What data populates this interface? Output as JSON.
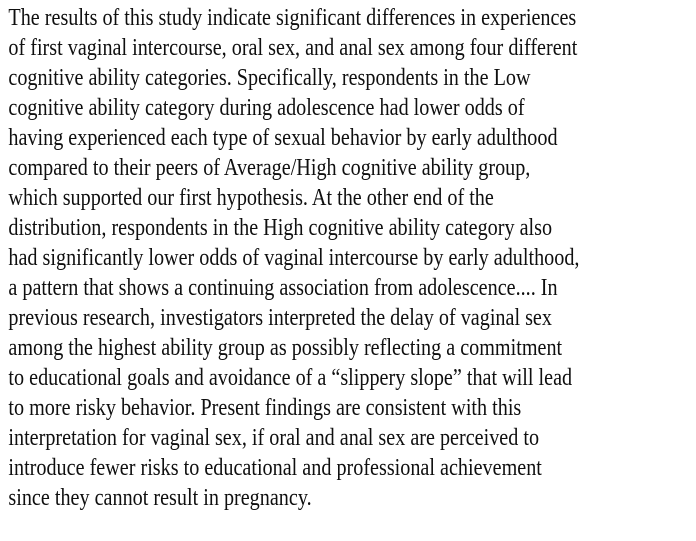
{
  "colors": {
    "background": "#ffffff",
    "text": "#0f0f0f"
  },
  "document": {
    "lines": [
      "The results of this study indicate significant differences in experiences",
      "of first vaginal intercourse, oral sex, and anal sex among four different",
      "cognitive ability categories. Specifically, respondents in the Low",
      "cognitive ability category during adolescence had lower odds of",
      "having experienced each type of sexual behavior by early adulthood",
      "compared to their peers of Average/High cognitive ability group,",
      "which supported our first hypothesis. At the other end of the",
      "distribution, respondents in the High cognitive ability category also",
      "had significantly lower odds of vaginal intercourse by early adulthood,",
      "a pattern that shows a continuing association from adolescence.... In",
      "previous research, investigators interpreted the delay of vaginal sex",
      "among the highest ability group as possibly reflecting a commitment",
      "to educational goals and avoidance of a “slippery slope” that will lead",
      "to more risky behavior. Present findings are consistent with this",
      "interpretation for vaginal sex, if oral and anal sex are perceived to",
      "introduce fewer risks to educational and professional achievement",
      "since they cannot result in pregnancy."
    ]
  }
}
